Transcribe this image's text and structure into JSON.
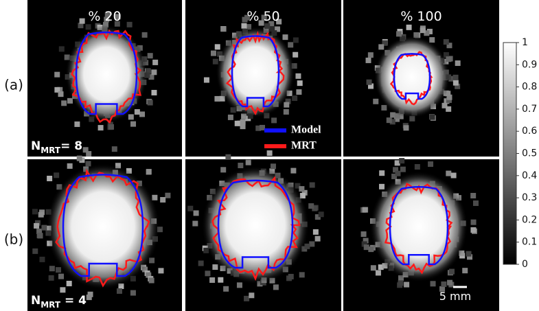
{
  "columns": [
    "% 20",
    "% 50",
    "% 100"
  ],
  "rows": [
    "(a)",
    "(b)"
  ],
  "annotations": [
    {
      "symbol": "N",
      "subscript": "MRT",
      "text": "= 8"
    },
    {
      "symbol": "N",
      "subscript": "MRT",
      "text": " = 4"
    }
  ],
  "legend": [
    {
      "label": "Model",
      "color": "#1010ff"
    },
    {
      "label": "MRT",
      "color": "#ff1a1a"
    }
  ],
  "colorbar": {
    "range": [
      0,
      1
    ],
    "ticks": [
      0,
      0.1,
      0.2,
      0.3,
      0.4,
      0.5,
      0.6,
      0.7,
      0.8,
      0.9,
      1
    ]
  },
  "scale_bar": "5 mm"
}
